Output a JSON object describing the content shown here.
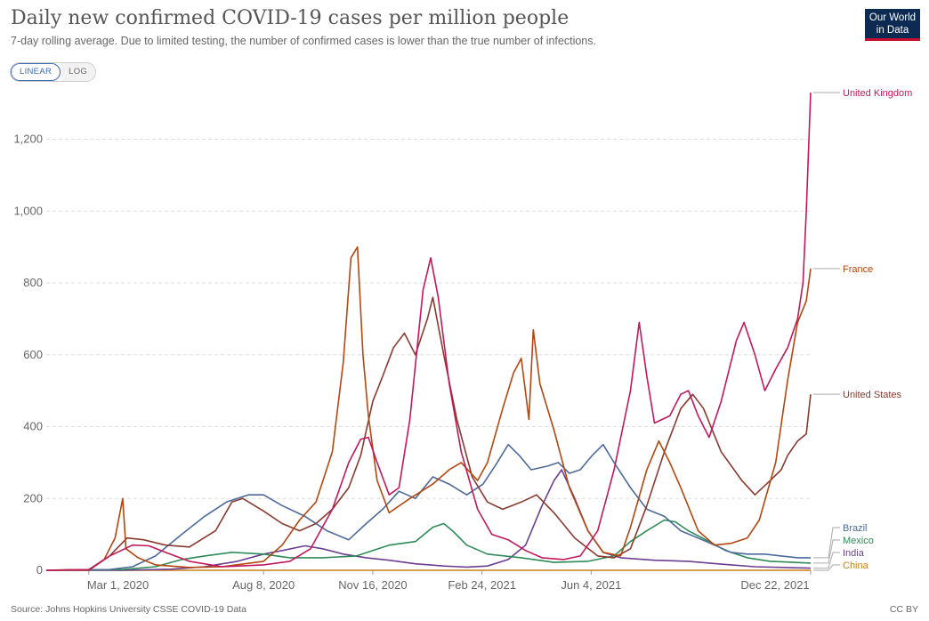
{
  "header": {
    "title": "Daily new confirmed COVID-19 cases per million people",
    "subtitle": "7-day rolling average. Due to limited testing, the number of confirmed cases is lower than the true number of infections.",
    "logo_line1": "Our World",
    "logo_line2": "in Data"
  },
  "controls": {
    "linear_label": "LINEAR",
    "log_label": "LOG",
    "selected": "LINEAR"
  },
  "footer": {
    "source": "Source: Johns Hopkins University CSSE COVID-19 Data",
    "license": "CC BY"
  },
  "chart_data": {
    "type": "line",
    "title": "Daily new confirmed COVID-19 cases per million people",
    "subtitle": "7-day rolling average. Due to limited testing, the number of confirmed cases is lower than the true number of infections.",
    "xlabel": "",
    "ylabel": "",
    "x_ticks": [
      "Mar 1, 2020",
      "Aug 8, 2020",
      "Nov 16, 2020",
      "Feb 24, 2021",
      "Jun 4, 2021",
      "Dec 22, 2021"
    ],
    "y_ticks": [
      0,
      200,
      400,
      600,
      800,
      1000,
      1200
    ],
    "ylim": [
      0,
      1340
    ],
    "xlim": [
      "2020-01-22",
      "2021-12-22"
    ],
    "grid": "horizontal-dashed",
    "legend": "right-end-labels",
    "series": [
      {
        "name": "United Kingdom",
        "color": "#c2185b",
        "points": [
          [
            "2020-01-22",
            0
          ],
          [
            "2020-03-01",
            2
          ],
          [
            "2020-03-20",
            40
          ],
          [
            "2020-04-10",
            70
          ],
          [
            "2020-04-25",
            68
          ],
          [
            "2020-05-10",
            50
          ],
          [
            "2020-06-01",
            25
          ],
          [
            "2020-07-01",
            10
          ],
          [
            "2020-08-08",
            15
          ],
          [
            "2020-09-01",
            25
          ],
          [
            "2020-09-20",
            60
          ],
          [
            "2020-10-10",
            170
          ],
          [
            "2020-10-25",
            300
          ],
          [
            "2020-11-05",
            365
          ],
          [
            "2020-11-12",
            370
          ],
          [
            "2020-11-20",
            300
          ],
          [
            "2020-12-01",
            210
          ],
          [
            "2020-12-10",
            230
          ],
          [
            "2020-12-20",
            420
          ],
          [
            "2021-01-01",
            780
          ],
          [
            "2021-01-08",
            870
          ],
          [
            "2021-01-15",
            760
          ],
          [
            "2021-01-25",
            520
          ],
          [
            "2021-02-05",
            330
          ],
          [
            "2021-02-20",
            170
          ],
          [
            "2021-03-05",
            100
          ],
          [
            "2021-03-20",
            85
          ],
          [
            "2021-04-05",
            55
          ],
          [
            "2021-04-20",
            35
          ],
          [
            "2021-05-10",
            30
          ],
          [
            "2021-05-25",
            40
          ],
          [
            "2021-06-10",
            110
          ],
          [
            "2021-06-25",
            280
          ],
          [
            "2021-07-10",
            500
          ],
          [
            "2021-07-18",
            690
          ],
          [
            "2021-07-25",
            540
          ],
          [
            "2021-08-01",
            410
          ],
          [
            "2021-08-15",
            430
          ],
          [
            "2021-08-25",
            490
          ],
          [
            "2021-09-01",
            500
          ],
          [
            "2021-09-10",
            430
          ],
          [
            "2021-09-20",
            370
          ],
          [
            "2021-10-01",
            470
          ],
          [
            "2021-10-15",
            640
          ],
          [
            "2021-10-22",
            690
          ],
          [
            "2021-11-01",
            600
          ],
          [
            "2021-11-10",
            500
          ],
          [
            "2021-11-20",
            560
          ],
          [
            "2021-12-01",
            620
          ],
          [
            "2021-12-10",
            700
          ],
          [
            "2021-12-15",
            800
          ],
          [
            "2021-12-18",
            1000
          ],
          [
            "2021-12-22",
            1330
          ]
        ]
      },
      {
        "name": "France",
        "color": "#b5460f",
        "points": [
          [
            "2020-01-22",
            0
          ],
          [
            "2020-03-01",
            2
          ],
          [
            "2020-03-15",
            30
          ],
          [
            "2020-03-25",
            90
          ],
          [
            "2020-04-01",
            200
          ],
          [
            "2020-04-04",
            60
          ],
          [
            "2020-04-15",
            35
          ],
          [
            "2020-05-01",
            15
          ],
          [
            "2020-06-01",
            8
          ],
          [
            "2020-07-01",
            10
          ],
          [
            "2020-08-08",
            25
          ],
          [
            "2020-08-25",
            70
          ],
          [
            "2020-09-10",
            140
          ],
          [
            "2020-09-25",
            190
          ],
          [
            "2020-10-10",
            330
          ],
          [
            "2020-10-20",
            580
          ],
          [
            "2020-10-27",
            870
          ],
          [
            "2020-11-02",
            900
          ],
          [
            "2020-11-07",
            600
          ],
          [
            "2020-11-12",
            430
          ],
          [
            "2020-11-20",
            250
          ],
          [
            "2020-12-01",
            160
          ],
          [
            "2020-12-20",
            200
          ],
          [
            "2021-01-10",
            240
          ],
          [
            "2021-01-25",
            280
          ],
          [
            "2021-02-05",
            300
          ],
          [
            "2021-02-20",
            250
          ],
          [
            "2021-03-01",
            300
          ],
          [
            "2021-03-15",
            450
          ],
          [
            "2021-03-25",
            550
          ],
          [
            "2021-04-01",
            590
          ],
          [
            "2021-04-08",
            420
          ],
          [
            "2021-04-12",
            670
          ],
          [
            "2021-04-18",
            520
          ],
          [
            "2021-05-01",
            390
          ],
          [
            "2021-05-15",
            230
          ],
          [
            "2021-06-01",
            110
          ],
          [
            "2021-06-15",
            50
          ],
          [
            "2021-07-01",
            40
          ],
          [
            "2021-07-10",
            120
          ],
          [
            "2021-07-25",
            280
          ],
          [
            "2021-08-05",
            360
          ],
          [
            "2021-08-15",
            300
          ],
          [
            "2021-08-25",
            230
          ],
          [
            "2021-09-10",
            110
          ],
          [
            "2021-09-25",
            70
          ],
          [
            "2021-10-10",
            75
          ],
          [
            "2021-10-25",
            90
          ],
          [
            "2021-11-05",
            140
          ],
          [
            "2021-11-20",
            300
          ],
          [
            "2021-12-01",
            530
          ],
          [
            "2021-12-10",
            690
          ],
          [
            "2021-12-18",
            750
          ],
          [
            "2021-12-22",
            840
          ]
        ]
      },
      {
        "name": "United States",
        "color": "#8a3a2e",
        "points": [
          [
            "2020-01-22",
            0
          ],
          [
            "2020-03-01",
            0
          ],
          [
            "2020-03-20",
            40
          ],
          [
            "2020-04-05",
            90
          ],
          [
            "2020-04-20",
            85
          ],
          [
            "2020-05-10",
            70
          ],
          [
            "2020-06-01",
            65
          ],
          [
            "2020-06-25",
            110
          ],
          [
            "2020-07-10",
            190
          ],
          [
            "2020-07-20",
            200
          ],
          [
            "2020-08-08",
            165
          ],
          [
            "2020-08-25",
            130
          ],
          [
            "2020-09-10",
            110
          ],
          [
            "2020-09-25",
            130
          ],
          [
            "2020-10-10",
            170
          ],
          [
            "2020-10-25",
            230
          ],
          [
            "2020-11-05",
            320
          ],
          [
            "2020-11-16",
            470
          ],
          [
            "2020-11-25",
            540
          ],
          [
            "2020-12-05",
            620
          ],
          [
            "2020-12-15",
            660
          ],
          [
            "2020-12-25",
            600
          ],
          [
            "2021-01-05",
            700
          ],
          [
            "2021-01-10",
            760
          ],
          [
            "2021-01-20",
            600
          ],
          [
            "2021-02-01",
            420
          ],
          [
            "2021-02-15",
            260
          ],
          [
            "2021-03-01",
            190
          ],
          [
            "2021-03-15",
            170
          ],
          [
            "2021-04-01",
            190
          ],
          [
            "2021-04-15",
            210
          ],
          [
            "2021-05-01",
            160
          ],
          [
            "2021-05-20",
            90
          ],
          [
            "2021-06-10",
            40
          ],
          [
            "2021-06-25",
            35
          ],
          [
            "2021-07-10",
            60
          ],
          [
            "2021-07-25",
            180
          ],
          [
            "2021-08-10",
            330
          ],
          [
            "2021-08-25",
            450
          ],
          [
            "2021-09-05",
            490
          ],
          [
            "2021-09-15",
            450
          ],
          [
            "2021-10-01",
            330
          ],
          [
            "2021-10-20",
            250
          ],
          [
            "2021-11-01",
            210
          ],
          [
            "2021-11-15",
            250
          ],
          [
            "2021-11-25",
            280
          ],
          [
            "2021-12-01",
            320
          ],
          [
            "2021-12-10",
            360
          ],
          [
            "2021-12-18",
            380
          ],
          [
            "2021-12-22",
            490
          ]
        ]
      },
      {
        "name": "Brazil",
        "color": "#4c6a9c",
        "points": [
          [
            "2020-01-22",
            0
          ],
          [
            "2020-03-20",
            2
          ],
          [
            "2020-04-10",
            10
          ],
          [
            "2020-05-01",
            40
          ],
          [
            "2020-05-25",
            100
          ],
          [
            "2020-06-15",
            150
          ],
          [
            "2020-07-05",
            190
          ],
          [
            "2020-07-25",
            210
          ],
          [
            "2020-08-08",
            210
          ],
          [
            "2020-08-25",
            180
          ],
          [
            "2020-09-15",
            150
          ],
          [
            "2020-10-05",
            110
          ],
          [
            "2020-10-25",
            85
          ],
          [
            "2020-11-10",
            130
          ],
          [
            "2020-11-25",
            170
          ],
          [
            "2020-12-10",
            220
          ],
          [
            "2020-12-25",
            200
          ],
          [
            "2021-01-10",
            260
          ],
          [
            "2021-01-25",
            240
          ],
          [
            "2021-02-10",
            210
          ],
          [
            "2021-02-25",
            240
          ],
          [
            "2021-03-10",
            300
          ],
          [
            "2021-03-20",
            350
          ],
          [
            "2021-03-30",
            320
          ],
          [
            "2021-04-10",
            280
          ],
          [
            "2021-04-25",
            290
          ],
          [
            "2021-05-05",
            300
          ],
          [
            "2021-05-15",
            270
          ],
          [
            "2021-05-25",
            280
          ],
          [
            "2021-06-05",
            320
          ],
          [
            "2021-06-15",
            350
          ],
          [
            "2021-06-25",
            300
          ],
          [
            "2021-07-10",
            230
          ],
          [
            "2021-07-25",
            170
          ],
          [
            "2021-08-10",
            150
          ],
          [
            "2021-08-25",
            110
          ],
          [
            "2021-09-10",
            90
          ],
          [
            "2021-09-25",
            70
          ],
          [
            "2021-10-10",
            50
          ],
          [
            "2021-10-25",
            45
          ],
          [
            "2021-11-10",
            45
          ],
          [
            "2021-11-25",
            40
          ],
          [
            "2021-12-10",
            35
          ],
          [
            "2021-12-22",
            35
          ]
        ]
      },
      {
        "name": "Mexico",
        "color": "#2e8b57",
        "points": [
          [
            "2020-01-22",
            0
          ],
          [
            "2020-04-01",
            2
          ],
          [
            "2020-05-01",
            10
          ],
          [
            "2020-05-25",
            30
          ],
          [
            "2020-06-15",
            40
          ],
          [
            "2020-07-10",
            50
          ],
          [
            "2020-08-08",
            45
          ],
          [
            "2020-09-01",
            35
          ],
          [
            "2020-10-01",
            35
          ],
          [
            "2020-11-01",
            40
          ],
          [
            "2020-12-01",
            70
          ],
          [
            "2020-12-25",
            80
          ],
          [
            "2021-01-10",
            120
          ],
          [
            "2021-01-20",
            130
          ],
          [
            "2021-01-28",
            110
          ],
          [
            "2021-02-10",
            70
          ],
          [
            "2021-03-01",
            45
          ],
          [
            "2021-04-01",
            35
          ],
          [
            "2021-05-01",
            22
          ],
          [
            "2021-06-01",
            25
          ],
          [
            "2021-06-25",
            40
          ],
          [
            "2021-07-10",
            80
          ],
          [
            "2021-07-25",
            110
          ],
          [
            "2021-08-10",
            140
          ],
          [
            "2021-08-20",
            135
          ],
          [
            "2021-09-01",
            110
          ],
          [
            "2021-09-20",
            80
          ],
          [
            "2021-10-05",
            55
          ],
          [
            "2021-10-25",
            35
          ],
          [
            "2021-11-15",
            25
          ],
          [
            "2021-12-22",
            20
          ]
        ]
      },
      {
        "name": "India",
        "color": "#6d3e91",
        "points": [
          [
            "2020-01-22",
            0
          ],
          [
            "2020-04-01",
            0
          ],
          [
            "2020-05-15",
            3
          ],
          [
            "2020-06-15",
            10
          ],
          [
            "2020-07-15",
            25
          ],
          [
            "2020-08-08",
            45
          ],
          [
            "2020-08-25",
            55
          ],
          [
            "2020-09-15",
            68
          ],
          [
            "2020-10-01",
            60
          ],
          [
            "2020-10-20",
            45
          ],
          [
            "2020-11-10",
            35
          ],
          [
            "2020-12-01",
            28
          ],
          [
            "2020-12-25",
            18
          ],
          [
            "2021-01-20",
            12
          ],
          [
            "2021-02-10",
            9
          ],
          [
            "2021-03-01",
            12
          ],
          [
            "2021-03-20",
            30
          ],
          [
            "2021-04-05",
            70
          ],
          [
            "2021-04-20",
            180
          ],
          [
            "2021-05-01",
            250
          ],
          [
            "2021-05-08",
            280
          ],
          [
            "2021-05-20",
            200
          ],
          [
            "2021-06-01",
            110
          ],
          [
            "2021-06-15",
            50
          ],
          [
            "2021-07-01",
            35
          ],
          [
            "2021-08-01",
            28
          ],
          [
            "2021-09-01",
            25
          ],
          [
            "2021-10-01",
            17
          ],
          [
            "2021-11-01",
            10
          ],
          [
            "2021-12-22",
            6
          ]
        ]
      },
      {
        "name": "China",
        "color": "#c87f1a",
        "points": [
          [
            "2020-01-22",
            0
          ],
          [
            "2020-02-05",
            1
          ],
          [
            "2020-02-15",
            1.5
          ],
          [
            "2020-03-01",
            0.5
          ],
          [
            "2020-04-01",
            0.1
          ],
          [
            "2021-12-22",
            0.1
          ]
        ]
      }
    ]
  }
}
